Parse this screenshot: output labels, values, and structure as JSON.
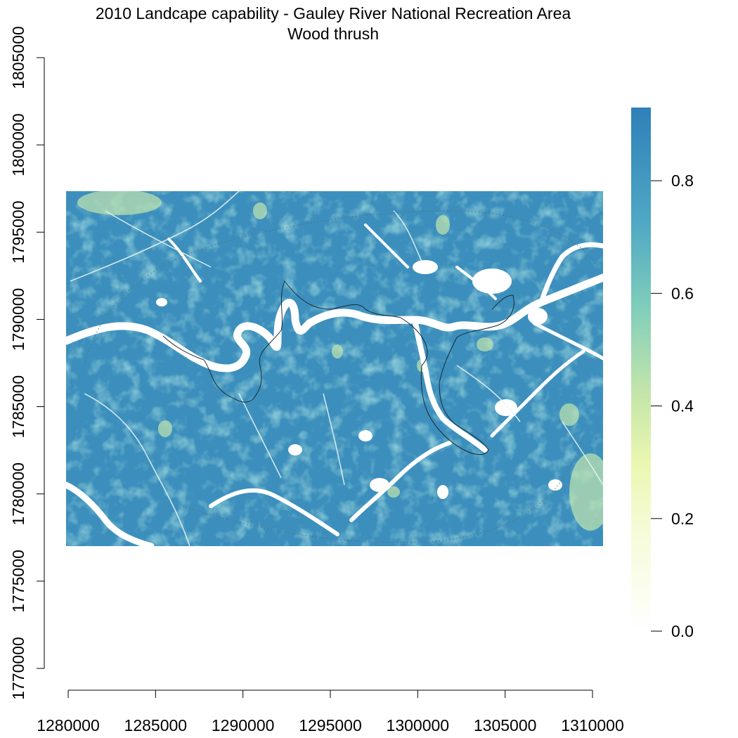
{
  "title": {
    "line1": "2010 Landcape capability - Gauley River National Recreation Area",
    "line2": "Wood thrush"
  },
  "chart_data": {
    "type": "heatmap",
    "title": "2010 Landcape capability - Gauley River National Recreation Area",
    "subtitle": "Wood thrush",
    "xlabel": "",
    "ylabel": "",
    "xlim": [
      1280000,
      1310000
    ],
    "ylim": [
      1770000,
      1805000
    ],
    "x_ticks": [
      "1280000",
      "1285000",
      "1290000",
      "1295000",
      "1300000",
      "1305000",
      "1310000"
    ],
    "y_ticks": [
      "1770000",
      "1775000",
      "1780000",
      "1785000",
      "1790000",
      "1795000",
      "1800000",
      "1805000"
    ],
    "raster_extent": {
      "xmin": 1280000,
      "xmax": 1310500,
      "ymin": 1777000,
      "ymax": 1797300
    },
    "value_range": [
      0.0,
      0.93
    ],
    "typical_value": 0.8,
    "colorbar": {
      "ticks": [
        "0.0",
        "0.2",
        "0.4",
        "0.6",
        "0.8"
      ],
      "tick_values": [
        0.0,
        0.2,
        0.4,
        0.6,
        0.8
      ],
      "max": 0.93,
      "colors": [
        "#ffffff",
        "#f4f9c3",
        "#c7e9b4",
        "#7fcdbb",
        "#41b6c4",
        "#3a8fc0",
        "#2c7fb8"
      ]
    }
  }
}
